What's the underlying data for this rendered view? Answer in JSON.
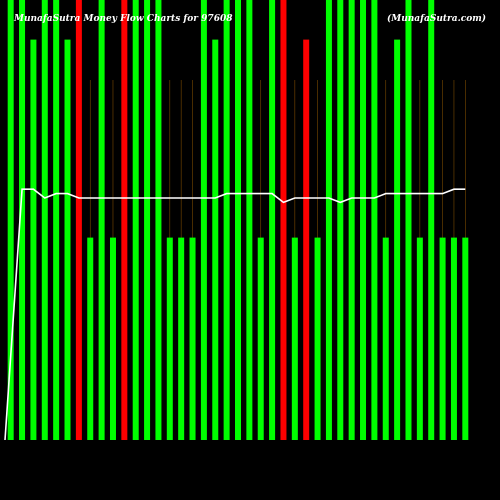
{
  "chart_data": {
    "type": "bar",
    "title": "MunafaSutra Money Flow Charts for 97608",
    "subtitle": "(MunafaSutra.com)",
    "xlabel": "",
    "ylabel": "",
    "ylim": [
      0,
      100
    ],
    "grid": true,
    "legend": "none",
    "colors": {
      "up": "#00ff00",
      "down": "#ff0000",
      "line": "#ffffff",
      "grid": "#7a4a00",
      "background": "#000000"
    },
    "bars": [
      {
        "value": 100,
        "dir": "up"
      },
      {
        "value": 100,
        "dir": "up"
      },
      {
        "value": 91,
        "dir": "up"
      },
      {
        "value": 100,
        "dir": "up"
      },
      {
        "value": 100,
        "dir": "up"
      },
      {
        "value": 91,
        "dir": "up"
      },
      {
        "value": 100,
        "dir": "down"
      },
      {
        "value": 46,
        "dir": "up"
      },
      {
        "value": 100,
        "dir": "up"
      },
      {
        "value": 46,
        "dir": "up"
      },
      {
        "value": 100,
        "dir": "down"
      },
      {
        "value": 100,
        "dir": "up"
      },
      {
        "value": 100,
        "dir": "up"
      },
      {
        "value": 100,
        "dir": "up"
      },
      {
        "value": 46,
        "dir": "up"
      },
      {
        "value": 46,
        "dir": "up"
      },
      {
        "value": 46,
        "dir": "up"
      },
      {
        "value": 100,
        "dir": "up"
      },
      {
        "value": 91,
        "dir": "up"
      },
      {
        "value": 100,
        "dir": "up"
      },
      {
        "value": 100,
        "dir": "up"
      },
      {
        "value": 100,
        "dir": "up"
      },
      {
        "value": 46,
        "dir": "up"
      },
      {
        "value": 100,
        "dir": "up"
      },
      {
        "value": 100,
        "dir": "down"
      },
      {
        "value": 46,
        "dir": "up"
      },
      {
        "value": 91,
        "dir": "down"
      },
      {
        "value": 46,
        "dir": "up"
      },
      {
        "value": 100,
        "dir": "up"
      },
      {
        "value": 100,
        "dir": "up"
      },
      {
        "value": 100,
        "dir": "up"
      },
      {
        "value": 100,
        "dir": "up"
      },
      {
        "value": 100,
        "dir": "up"
      },
      {
        "value": 46,
        "dir": "up"
      },
      {
        "value": 91,
        "dir": "up"
      },
      {
        "value": 100,
        "dir": "up"
      },
      {
        "value": 46,
        "dir": "up"
      },
      {
        "value": 100,
        "dir": "up"
      },
      {
        "value": 46,
        "dir": "up"
      },
      {
        "value": 46,
        "dir": "up"
      },
      {
        "value": 46,
        "dir": "up"
      }
    ],
    "line_values": [
      0,
      57,
      57,
      55,
      56,
      56,
      55,
      55,
      55,
      55,
      55,
      55,
      55,
      55,
      55,
      55,
      55,
      55,
      55,
      56,
      56,
      56,
      56,
      56,
      54,
      55,
      55,
      55,
      55,
      54,
      55,
      55,
      55,
      56,
      56,
      56,
      56,
      56,
      56,
      57,
      57
    ]
  }
}
